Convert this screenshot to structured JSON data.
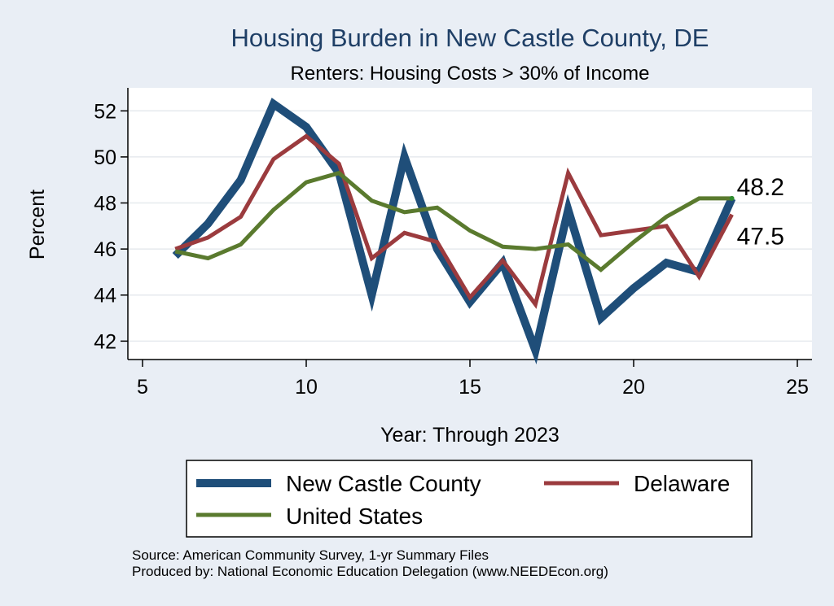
{
  "chart_data": {
    "type": "line",
    "title": "Housing Burden in New Castle County, DE",
    "subtitle": "Renters: Housing Costs > 30% of Income",
    "xlabel": "Year: Through 2023",
    "ylabel": "Percent",
    "xlim": [
      5,
      25
    ],
    "ylim": [
      41.2,
      53.0
    ],
    "xticks": [
      5,
      10,
      15,
      20,
      25
    ],
    "yticks": [
      42,
      44,
      46,
      48,
      50,
      52
    ],
    "grid": true,
    "legend_position": "bottom",
    "series": [
      {
        "name": "New Castle County",
        "color": "#1f4e79",
        "width": "thick",
        "x": [
          6,
          7,
          8,
          9,
          10,
          11,
          12,
          13,
          14,
          15,
          16,
          17,
          18,
          19,
          20,
          21,
          22,
          23
        ],
        "values": [
          45.7,
          47.1,
          49.0,
          52.3,
          51.3,
          49.3,
          44.0,
          50.0,
          46.0,
          43.7,
          45.4,
          41.6,
          47.7,
          43.0,
          44.3,
          45.4,
          45.0,
          48.2
        ]
      },
      {
        "name": "Delaware",
        "color": "#9b3b3e",
        "width": "medium",
        "x": [
          6,
          7,
          8,
          9,
          10,
          11,
          12,
          13,
          14,
          15,
          16,
          17,
          18,
          19,
          20,
          21,
          22,
          23
        ],
        "values": [
          46.0,
          46.5,
          47.4,
          49.9,
          50.9,
          49.7,
          45.6,
          46.7,
          46.3,
          43.9,
          45.5,
          43.6,
          49.3,
          46.6,
          46.8,
          47.0,
          44.8,
          47.5
        ]
      },
      {
        "name": "United States",
        "color": "#5a7a2e",
        "width": "medium",
        "x": [
          6,
          7,
          8,
          9,
          10,
          11,
          12,
          13,
          14,
          15,
          16,
          17,
          18,
          19,
          20,
          21,
          22,
          23
        ],
        "values": [
          45.9,
          45.6,
          46.2,
          47.7,
          48.9,
          49.3,
          48.1,
          47.6,
          47.8,
          46.8,
          46.1,
          46.0,
          46.2,
          45.1,
          46.3,
          47.4,
          48.2,
          48.2
        ]
      }
    ],
    "end_labels": [
      "48.2",
      "47.5"
    ],
    "source_lines": [
      "Source: American Community Survey, 1-yr Summary Files",
      "Produced by: National Economic Education Delegation (www.NEEDEcon.org)"
    ]
  }
}
